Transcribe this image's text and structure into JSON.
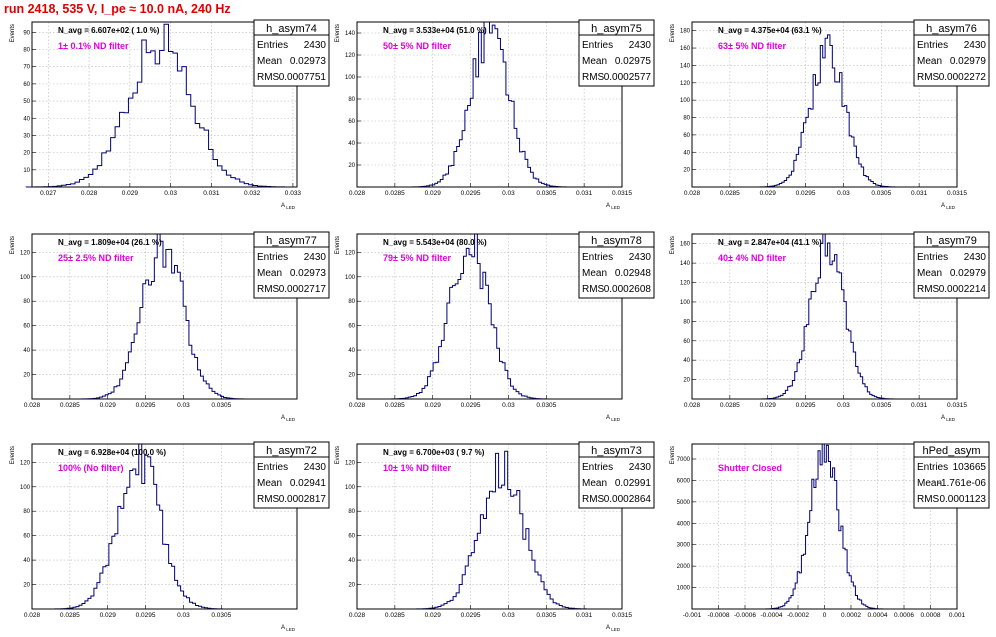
{
  "header": {
    "title": "run 2418,   535 V, I_pe ≈ 10.0 nA, 240 Hz"
  },
  "stat_labels": {
    "entries": "Entries",
    "mean": "Mean",
    "rms": "RMS"
  },
  "colors": {
    "title": "#e00000",
    "hist_line": "#00007a",
    "annotation": "#e000e0"
  },
  "chart_data": [
    {
      "type": "bar",
      "name": "h_asym74",
      "navg": "N_avg = 6.607e+02 ( 1.0 %)",
      "filter": "1± 0.1% ND filter",
      "entries": "2430",
      "mean": "0.02973",
      "rms": "0.0007751",
      "ylabel": "Events",
      "xlabel": "A_LED",
      "xlim": [
        0.0266,
        0.0331
      ],
      "ylim": [
        0,
        96
      ],
      "xticks": [
        0.027,
        0.028,
        0.029,
        0.03,
        0.031,
        0.032,
        0.033
      ],
      "xtick_labels": [
        "0.027",
        "0.028",
        "0.029",
        "0.03",
        "0.031",
        "0.032",
        "0.033"
      ],
      "yticks": [
        10,
        20,
        30,
        40,
        50,
        60,
        70,
        80,
        90
      ],
      "ytick_labels": [
        "10",
        "20",
        "30",
        "40",
        "50",
        "60",
        "70",
        "80",
        "90"
      ],
      "hist": {
        "mean": 0.02973,
        "sigma": 0.00078,
        "peak": 85
      }
    },
    {
      "type": "bar",
      "name": "h_asym75",
      "navg": "N_avg = 3.533e+04 (51.0 %)",
      "filter": "50± 5% ND filter",
      "entries": "2430",
      "mean": "0.02975",
      "rms": "0.0002577",
      "ylabel": "Events",
      "xlabel": "A_LED",
      "xlim": [
        0.028,
        0.0315
      ],
      "ylim": [
        0,
        150
      ],
      "xticks": [
        0.028,
        0.0285,
        0.029,
        0.0295,
        0.03,
        0.0305,
        0.031,
        0.0315
      ],
      "xtick_labels": [
        "0.028",
        "0.0285",
        "0.029",
        "0.0295",
        "0.03",
        "0.0305",
        "0.031",
        "0.0315"
      ],
      "yticks": [
        20,
        40,
        60,
        80,
        100,
        120,
        140
      ],
      "ytick_labels": [
        "20",
        "40",
        "60",
        "80",
        "100",
        "120",
        "140"
      ],
      "hist": {
        "mean": 0.02975,
        "sigma": 0.000258,
        "peak": 138
      }
    },
    {
      "type": "bar",
      "name": "h_asym76",
      "navg": "N_avg = 4.375e+04 (63.1 %)",
      "filter": "63± 5% ND filter",
      "entries": "2430",
      "mean": "0.02979",
      "rms": "0.0002272",
      "ylabel": "Events",
      "xlabel": "A_LED",
      "xlim": [
        0.028,
        0.0315
      ],
      "ylim": [
        0,
        190
      ],
      "xticks": [
        0.028,
        0.0285,
        0.029,
        0.0295,
        0.03,
        0.0305,
        0.031,
        0.0315
      ],
      "xtick_labels": [
        "0.028",
        "0.0285",
        "0.029",
        "0.0295",
        "0.03",
        "0.0305",
        "0.031",
        "0.0315"
      ],
      "yticks": [
        20,
        40,
        60,
        80,
        100,
        120,
        140,
        160,
        180
      ],
      "ytick_labels": [
        "20",
        "40",
        "60",
        "80",
        "100",
        "120",
        "140",
        "160",
        "180"
      ],
      "hist": {
        "mean": 0.02979,
        "sigma": 0.000227,
        "peak": 160
      }
    },
    {
      "type": "bar",
      "name": "h_asym77",
      "navg": "N_avg = 1.809e+04 (26.1 %)",
      "filter": "25± 2.5% ND filter",
      "entries": "2430",
      "mean": "0.02973",
      "rms": "0.0002717",
      "ylabel": "Events",
      "xlabel": "A_LED",
      "xlim": [
        0.028,
        0.0315
      ],
      "ylim": [
        0,
        135
      ],
      "xticks": [
        0.028,
        0.0285,
        0.029,
        0.0295,
        0.03,
        0.0305
      ],
      "xtick_labels": [
        "0.028",
        "0.0285",
        "0.029",
        "0.0295",
        "0.03",
        "0.0305"
      ],
      "yticks": [
        20,
        40,
        60,
        80,
        100,
        120
      ],
      "ytick_labels": [
        "20",
        "40",
        "60",
        "80",
        "100",
        "120"
      ],
      "hist": {
        "mean": 0.02973,
        "sigma": 0.000272,
        "peak": 126
      }
    },
    {
      "type": "bar",
      "name": "h_asym78",
      "navg": "N_avg = 5.543e+04 (80.0 %)",
      "filter": "79± 5% ND filter",
      "entries": "2430",
      "mean": "0.02948",
      "rms": "0.0002608",
      "ylabel": "Events",
      "xlabel": "A_LED",
      "xlim": [
        0.028,
        0.0315
      ],
      "ylim": [
        0,
        135
      ],
      "xticks": [
        0.028,
        0.0285,
        0.029,
        0.0295,
        0.03,
        0.0305
      ],
      "xtick_labels": [
        "0.028",
        "0.0285",
        "0.029",
        "0.0295",
        "0.03",
        "0.0305"
      ],
      "yticks": [
        20,
        40,
        60,
        80,
        100,
        120
      ],
      "ytick_labels": [
        "20",
        "40",
        "60",
        "80",
        "100",
        "120"
      ],
      "hist": {
        "mean": 0.02948,
        "sigma": 0.000261,
        "peak": 126
      }
    },
    {
      "type": "bar",
      "name": "h_asym79",
      "navg": "N_avg = 2.847e+04 (41.1 %)",
      "filter": "40± 4% ND filter",
      "entries": "2430",
      "mean": "0.02979",
      "rms": "0.0002214",
      "ylabel": "Events",
      "xlabel": "A_LED",
      "xlim": [
        0.028,
        0.0315
      ],
      "ylim": [
        0,
        170
      ],
      "xticks": [
        0.028,
        0.0285,
        0.029,
        0.0295,
        0.03,
        0.0305,
        0.031,
        0.0315
      ],
      "xtick_labels": [
        "0.028",
        "0.0285",
        "0.029",
        "0.0295",
        "0.03",
        "0.0305",
        "0.031",
        "0.0315"
      ],
      "yticks": [
        20,
        40,
        60,
        80,
        100,
        120,
        140,
        160
      ],
      "ytick_labels": [
        "20",
        "40",
        "60",
        "80",
        "100",
        "120",
        "140",
        "160"
      ],
      "hist": {
        "mean": 0.02979,
        "sigma": 0.000221,
        "peak": 158
      }
    },
    {
      "type": "bar",
      "name": "h_asym72",
      "navg": "N_avg = 6.928e+04 (100.0 %)",
      "filter": "100% (No filter)",
      "entries": "2430",
      "mean": "0.02941",
      "rms": "0.0002817",
      "ylabel": "Events",
      "xlabel": "A_LED",
      "xlim": [
        0.028,
        0.0315
      ],
      "ylim": [
        0,
        135
      ],
      "xticks": [
        0.028,
        0.0285,
        0.029,
        0.0295,
        0.03,
        0.0305
      ],
      "xtick_labels": [
        "0.028",
        "0.0285",
        "0.029",
        "0.0295",
        "0.03",
        "0.0305"
      ],
      "yticks": [
        20,
        40,
        60,
        80,
        100,
        120
      ],
      "ytick_labels": [
        "20",
        "40",
        "60",
        "80",
        "100",
        "120"
      ],
      "hist": {
        "mean": 0.02941,
        "sigma": 0.000282,
        "peak": 124
      }
    },
    {
      "type": "bar",
      "name": "h_asym73",
      "navg": "N_avg = 6.700e+03 ( 9.7 %)",
      "filter": "10± 1% ND filter",
      "entries": "2430",
      "mean": "0.02991",
      "rms": "0.0002864",
      "ylabel": "Events",
      "xlabel": "A_LED",
      "xlim": [
        0.028,
        0.0315
      ],
      "ylim": [
        0,
        135
      ],
      "xticks": [
        0.028,
        0.0285,
        0.029,
        0.0295,
        0.03,
        0.0305,
        0.031,
        0.0315
      ],
      "xtick_labels": [
        "0.028",
        "0.0285",
        "0.029",
        "0.0295",
        "0.03",
        "0.0305",
        "0.031",
        "0.0315"
      ],
      "yticks": [
        20,
        40,
        60,
        80,
        100,
        120
      ],
      "ytick_labels": [
        "20",
        "40",
        "60",
        "80",
        "100",
        "120"
      ],
      "hist": {
        "mean": 0.02991,
        "sigma": 0.000286,
        "peak": 118
      }
    },
    {
      "type": "bar",
      "name": "hPed_asym",
      "navg": "",
      "filter": "Shutter Closed",
      "entries": "103665",
      "mean": "-1.761e-06",
      "rms": "0.0001123",
      "ylabel": "Events",
      "xlabel": "",
      "xlim": [
        -0.001,
        0.001
      ],
      "ylim": [
        0,
        7700
      ],
      "xticks": [
        -0.001,
        -0.0008,
        -0.0006,
        -0.0004,
        -0.0002,
        0,
        0.0002,
        0.0004,
        0.0006,
        0.0008,
        0.001
      ],
      "xtick_labels": [
        "-0.001",
        "-0.0008",
        "-0.0006",
        "-0.0004",
        "-0.0002",
        "0",
        "0.0002",
        "0.0004",
        "0.0006",
        "0.0008",
        "0.001"
      ],
      "yticks": [
        1000,
        2000,
        3000,
        4000,
        5000,
        6000,
        7000
      ],
      "ytick_labels": [
        "1000",
        "2000",
        "3000",
        "4000",
        "5000",
        "6000",
        "7000"
      ],
      "hist": {
        "mean": -1.8e-06,
        "sigma": 0.000112,
        "peak": 7300
      }
    }
  ]
}
